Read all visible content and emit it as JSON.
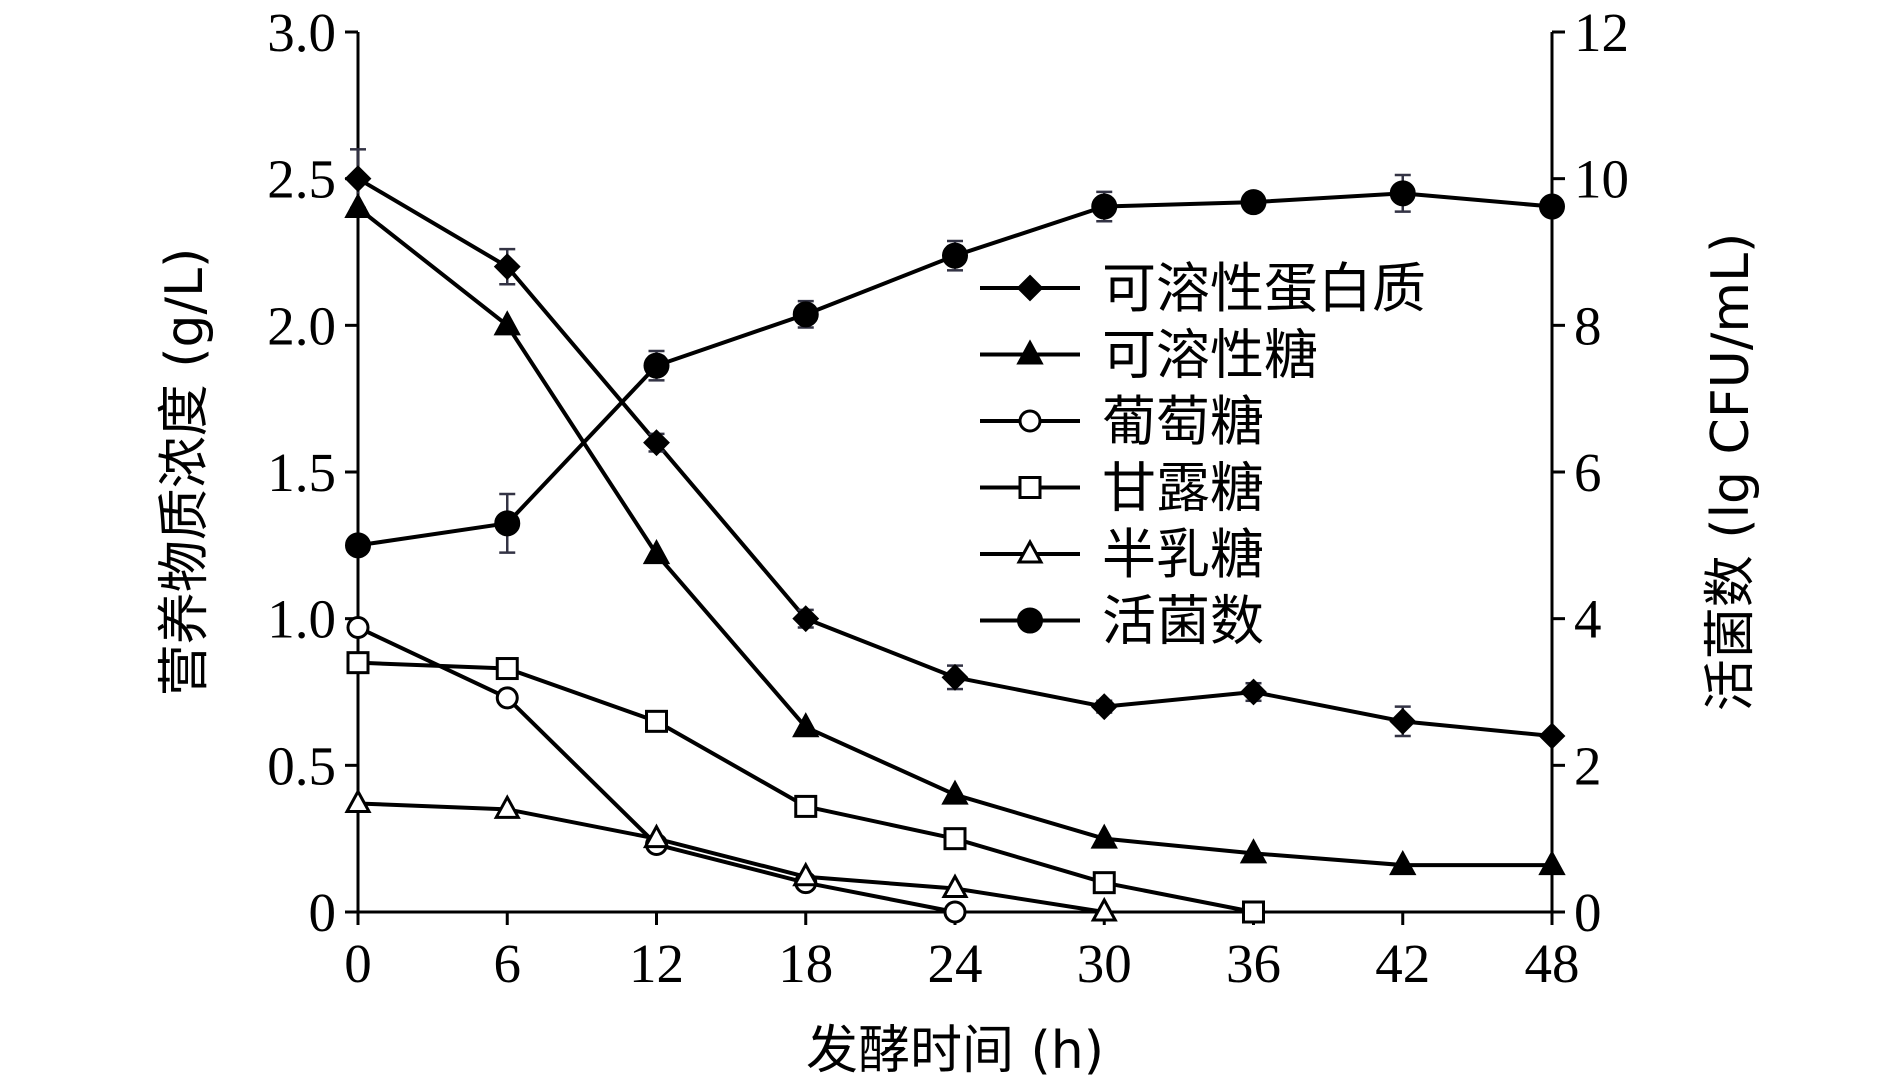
{
  "chart_data": {
    "type": "line",
    "xlabel": "发酵时间 (h)",
    "ylabel_left": "营养物质浓度 (g/L)",
    "ylabel_right": "活菌数 (lg CFU/mL)",
    "x_ticks": [
      "0",
      "6",
      "12",
      "18",
      "24",
      "30",
      "36",
      "42",
      "48"
    ],
    "y_left_ticks": [
      "0",
      "0.5",
      "1.0",
      "1.5",
      "2.0",
      "2.5",
      "3.0"
    ],
    "y_right_ticks": [
      "0",
      "2",
      "4",
      "6",
      "8",
      "10",
      "12"
    ],
    "xlim": [
      0,
      48
    ],
    "ylim_left": [
      0,
      3.0
    ],
    "ylim_right": [
      0,
      12
    ],
    "legend_position": "right",
    "series": [
      {
        "name": "可溶性蛋白质",
        "axis": "left",
        "marker": "diamond-filled",
        "x": [
          0,
          6,
          12,
          18,
          24,
          30,
          36,
          42,
          48
        ],
        "y": [
          2.5,
          2.2,
          1.6,
          1.0,
          0.8,
          0.7,
          0.75,
          0.65,
          0.6
        ],
        "err": [
          0.1,
          0.06,
          0.03,
          0.03,
          0.04,
          0.02,
          0.03,
          0.05,
          0.0
        ]
      },
      {
        "name": "可溶性糖",
        "axis": "left",
        "marker": "triangle-filled",
        "x": [
          0,
          6,
          12,
          18,
          24,
          30,
          36,
          42,
          48
        ],
        "y": [
          2.4,
          2.0,
          1.22,
          0.63,
          0.4,
          0.25,
          0.2,
          0.16,
          0.16
        ],
        "err": []
      },
      {
        "name": "葡萄糖",
        "axis": "left",
        "marker": "circle-open",
        "x": [
          0,
          6,
          12,
          18,
          24
        ],
        "y": [
          0.97,
          0.73,
          0.23,
          0.1,
          0.0
        ],
        "err": []
      },
      {
        "name": "甘露糖",
        "axis": "left",
        "marker": "square-open",
        "x": [
          0,
          6,
          12,
          18,
          24,
          30,
          36
        ],
        "y": [
          0.85,
          0.83,
          0.65,
          0.36,
          0.25,
          0.1,
          0.0
        ],
        "err": []
      },
      {
        "name": "半乳糖",
        "axis": "left",
        "marker": "triangle-open",
        "x": [
          0,
          6,
          12,
          18,
          24,
          30
        ],
        "y": [
          0.37,
          0.35,
          0.25,
          0.12,
          0.08,
          0.0
        ],
        "err": []
      },
      {
        "name": "活菌数",
        "axis": "right",
        "marker": "circle-filled",
        "x": [
          0,
          6,
          12,
          18,
          24,
          30,
          36,
          42,
          48
        ],
        "y": [
          5.0,
          5.3,
          7.45,
          8.15,
          8.95,
          9.62,
          9.68,
          9.8,
          9.62
        ],
        "err": [
          0.0,
          0.4,
          0.2,
          0.18,
          0.2,
          0.2,
          0.05,
          0.25,
          0.0
        ]
      }
    ]
  }
}
